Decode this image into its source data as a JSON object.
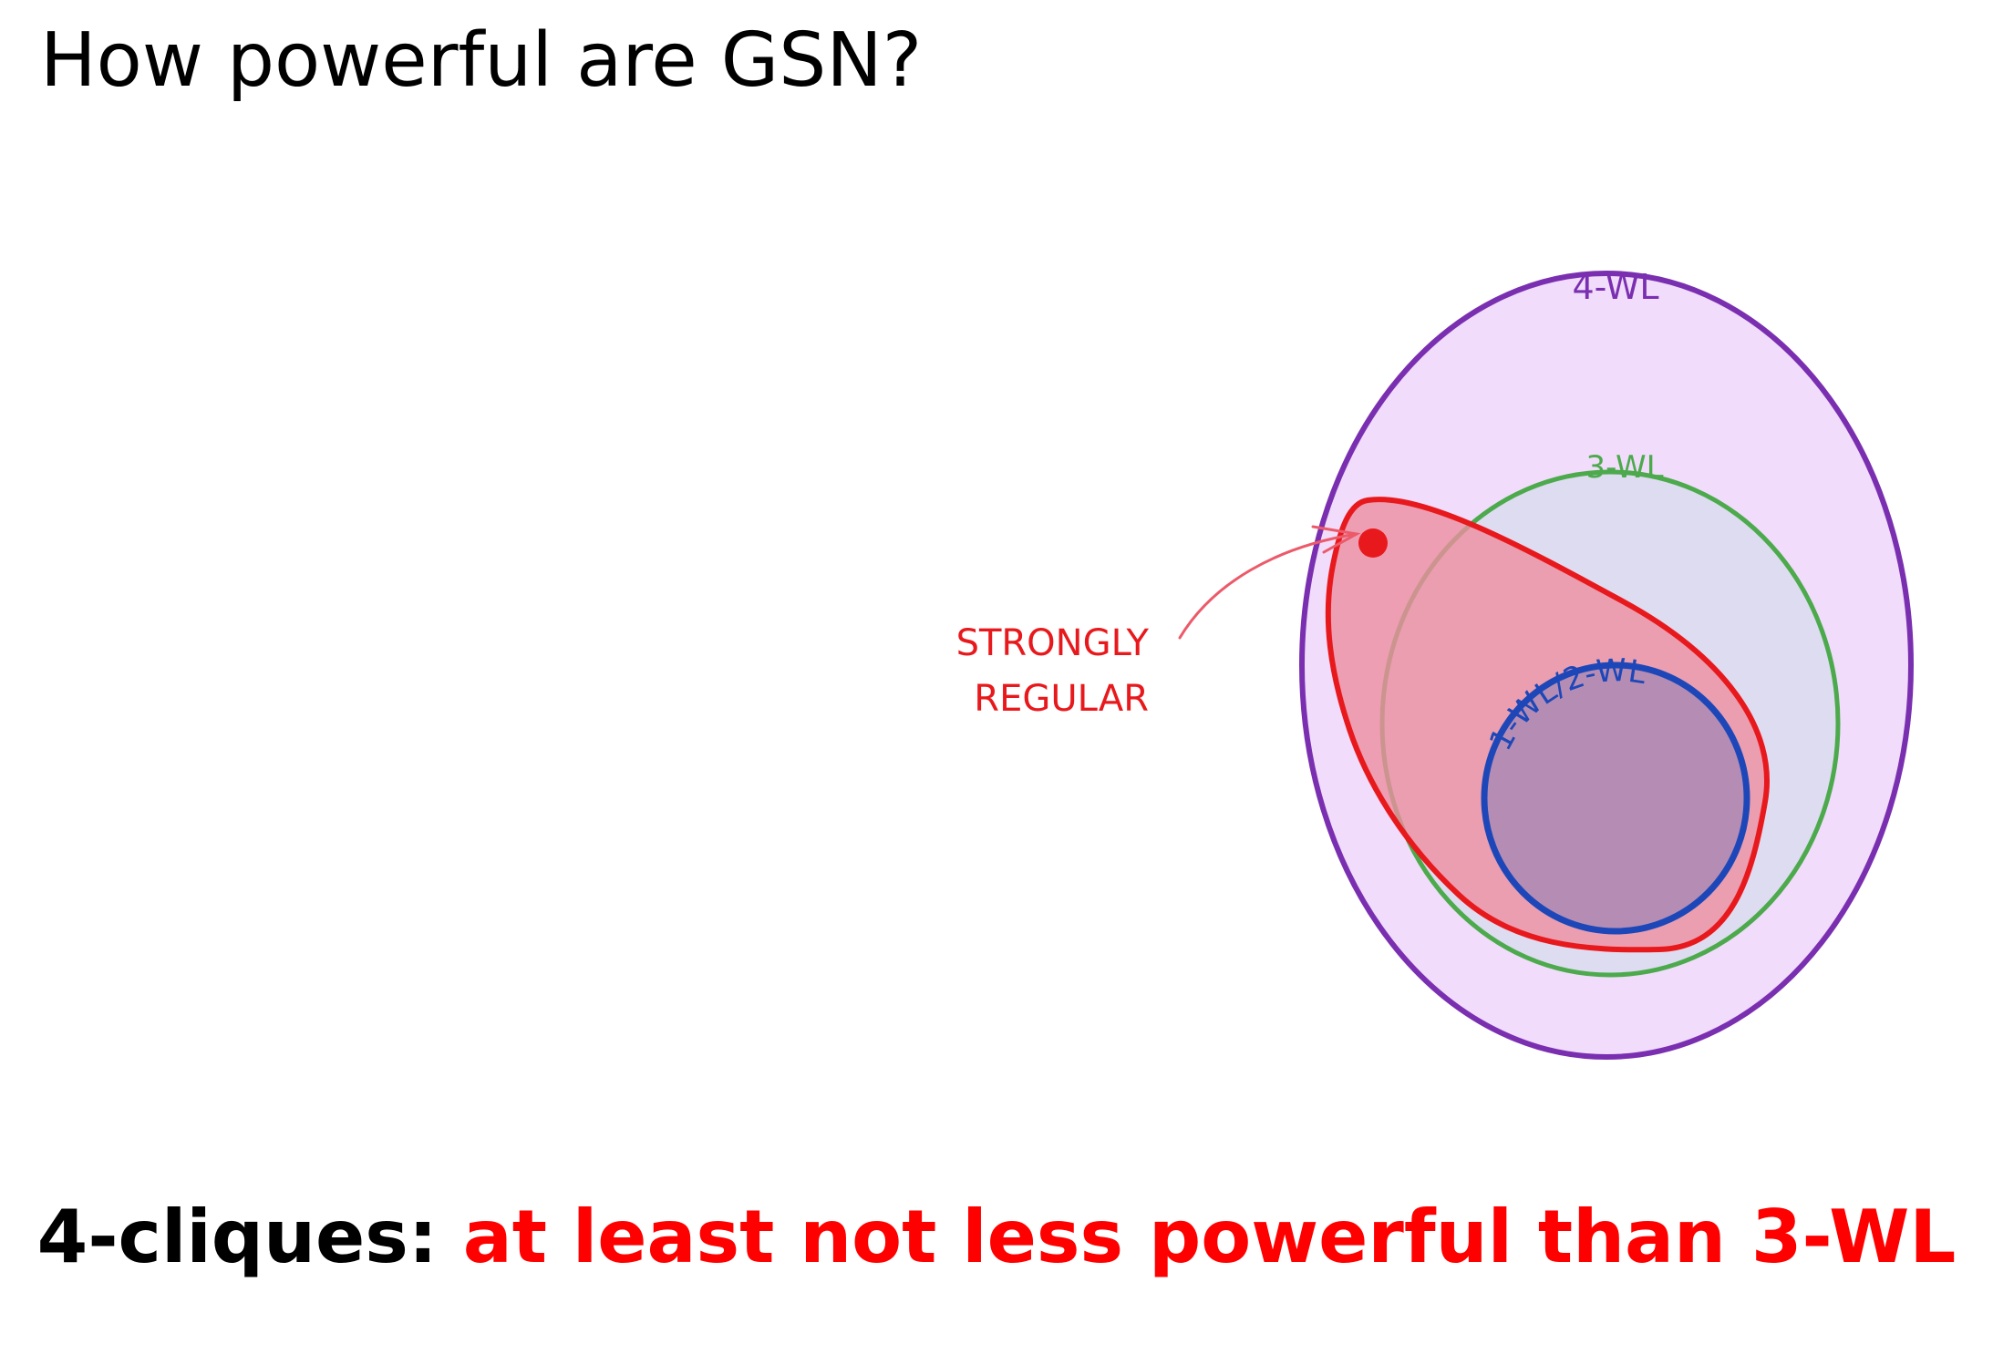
{
  "title": "How powerful are GSN?",
  "diagram": {
    "sets": [
      {
        "label": "4-WL",
        "color": "#7a2fb0",
        "fill": "#f1dcfb"
      },
      {
        "label": "3-WL",
        "color": "#4caa4c",
        "fill": "#dcdcee"
      },
      {
        "label": "1-WL/2-WL",
        "color": "#1d47b8",
        "fill": "#b28cb4"
      }
    ],
    "highlight": {
      "label_lines": [
        "STRONGLY",
        "REGULAR"
      ],
      "color": "#e8191c",
      "fill": "#ec8ea0"
    }
  },
  "conclusion": {
    "lead": "4-cliques:",
    "claim": "at least not less powerful than 3-WL",
    "lead_color": "#000000",
    "claim_color": "#ff0000"
  }
}
